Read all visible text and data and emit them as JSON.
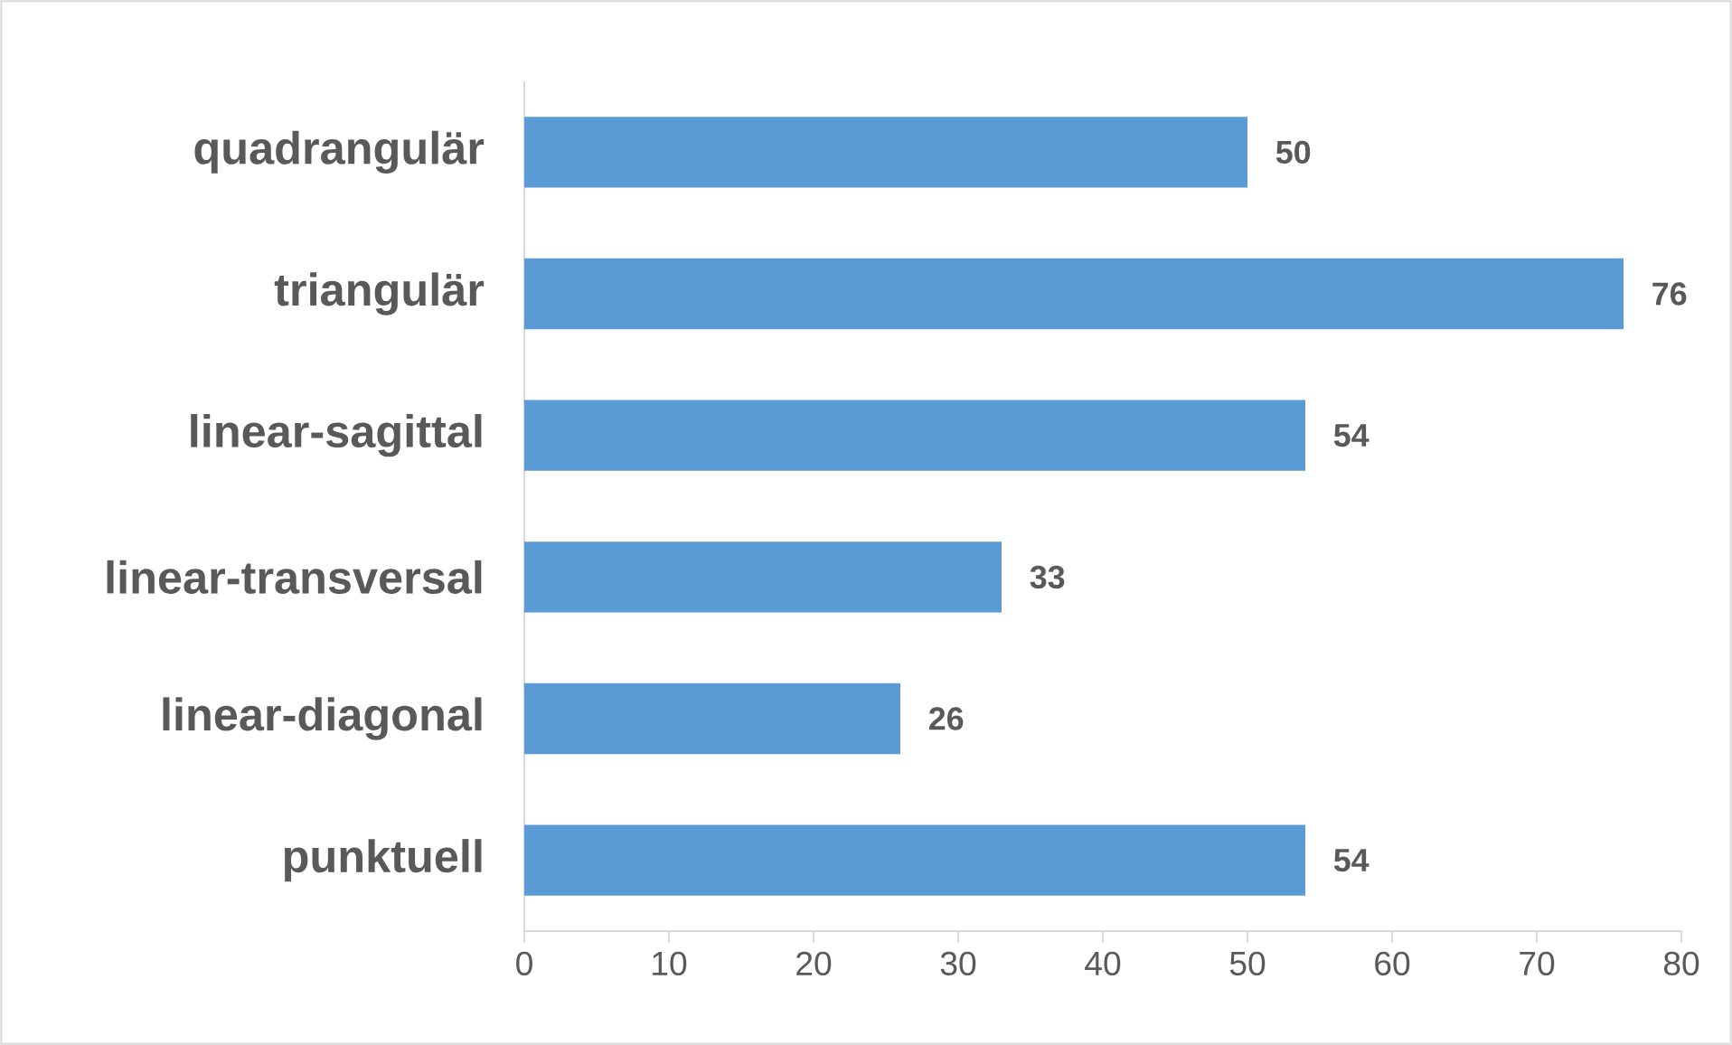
{
  "chart_data": {
    "type": "bar",
    "orientation": "horizontal",
    "categories": [
      "quadrangulär",
      "triangulär",
      "linear-sagittal",
      "linear-transversal",
      "linear-diagonal",
      "punktuell"
    ],
    "values": [
      50,
      76,
      54,
      33,
      26,
      54
    ],
    "color": "#5b9bd5",
    "xlim": [
      0,
      80
    ],
    "xticks": [
      0,
      10,
      20,
      30,
      40,
      50,
      60,
      70,
      80
    ],
    "data_labels": true
  }
}
